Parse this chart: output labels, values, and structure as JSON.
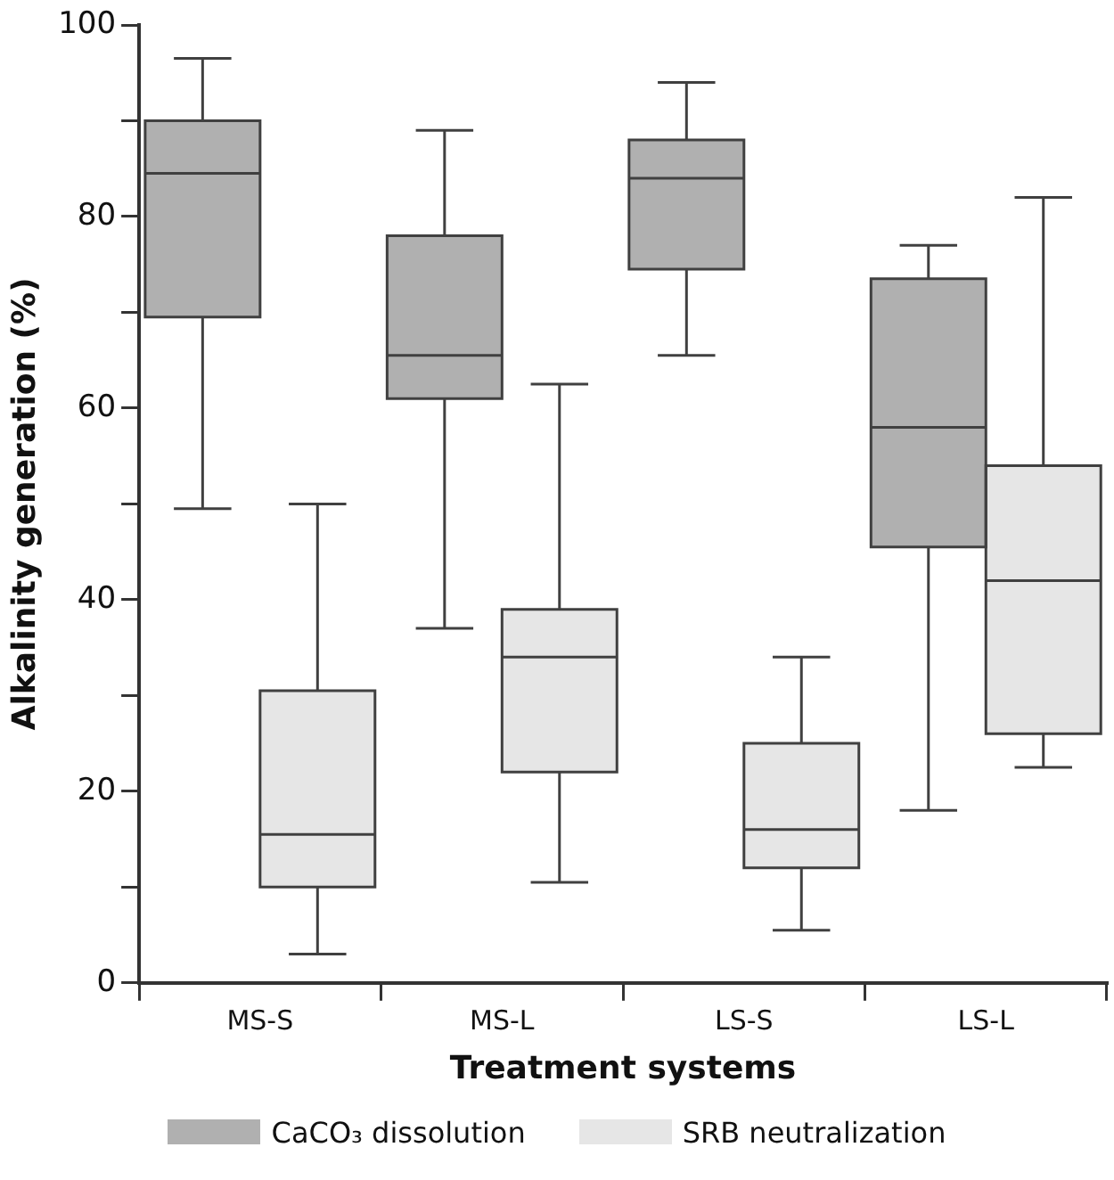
{
  "chart_data": {
    "type": "box",
    "xlabel": "Treatment systems",
    "ylabel": "Alkalinity generation (%)",
    "categories": [
      "MS-S",
      "MS-L",
      "LS-S",
      "LS-L"
    ],
    "series": [
      {
        "name": "CaCO₃ dissolution",
        "color": "#b0b0b0",
        "boxes": [
          {
            "low": 49.5,
            "q1": 69.5,
            "median": 84.5,
            "q3": 90,
            "high": 96.5
          },
          {
            "low": 37,
            "q1": 61,
            "median": 65.5,
            "q3": 78,
            "high": 89
          },
          {
            "low": 65.5,
            "q1": 74.5,
            "median": 84,
            "q3": 88,
            "high": 94
          },
          {
            "low": 18,
            "q1": 45.5,
            "median": 58,
            "q3": 73.5,
            "high": 77
          }
        ]
      },
      {
        "name": "SRB neutralization",
        "color": "#e6e6e6",
        "boxes": [
          {
            "low": 3,
            "q1": 10,
            "median": 15.5,
            "q3": 30.5,
            "high": 50
          },
          {
            "low": 10.5,
            "q1": 22,
            "median": 34,
            "q3": 39,
            "high": 62.5
          },
          {
            "low": 5.5,
            "q1": 12,
            "median": 16,
            "q3": 25,
            "high": 34
          },
          {
            "low": 22.5,
            "q1": 26,
            "median": 42,
            "q3": 54,
            "high": 82
          }
        ]
      }
    ],
    "ylim": [
      0,
      100
    ],
    "yticks": [
      0,
      {
        "value": 10,
        "label": null
      },
      20,
      {
        "value": 30,
        "label": null
      },
      40,
      {
        "value": 50,
        "label": null
      },
      60,
      {
        "value": 70,
        "label": null
      },
      80,
      {
        "value": 90,
        "label": null
      },
      100
    ],
    "grid": false,
    "legend": "bottom"
  }
}
